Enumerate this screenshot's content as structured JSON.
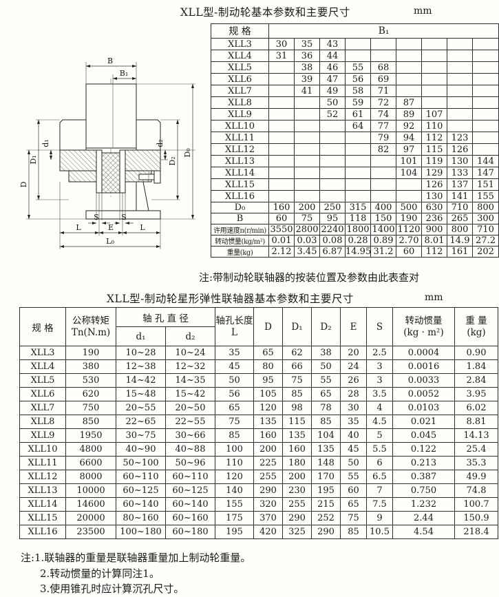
{
  "table1": {
    "title": "XLL型-制动轮基本参数和主要尺寸",
    "unit": "mm",
    "col_spec": "规 格",
    "col_b1": "B₁",
    "rows": [
      [
        "XLL3",
        "30",
        "35",
        "43",
        "",
        "",
        "",
        "",
        "",
        ""
      ],
      [
        "XLL4",
        "31",
        "36",
        "44",
        "",
        "",
        "",
        "",
        "",
        ""
      ],
      [
        "XLL5",
        "",
        "38",
        "46",
        "55",
        "68",
        "",
        "",
        "",
        ""
      ],
      [
        "XLL6",
        "",
        "39",
        "47",
        "56",
        "69",
        "",
        "",
        "",
        ""
      ],
      [
        "XLL7",
        "",
        "41",
        "49",
        "58",
        "71",
        "",
        "",
        "",
        ""
      ],
      [
        "XLL8",
        "",
        "",
        "50",
        "59",
        "72",
        "87",
        "",
        "",
        ""
      ],
      [
        "XLL9",
        "",
        "",
        "52",
        "61",
        "74",
        "89",
        "107",
        "",
        ""
      ],
      [
        "XLL10",
        "",
        "",
        "",
        "64",
        "77",
        "92",
        "110",
        "",
        ""
      ],
      [
        "XLL11",
        "",
        "",
        "",
        "",
        "79",
        "94",
        "112",
        "123",
        ""
      ],
      [
        "XLL12",
        "",
        "",
        "",
        "",
        "82",
        "97",
        "115",
        "126",
        ""
      ],
      [
        "XLL13",
        "",
        "",
        "",
        "",
        "",
        "101",
        "119",
        "130",
        "144"
      ],
      [
        "XLL14",
        "",
        "",
        "",
        "",
        "",
        "104",
        "129",
        "133",
        "147"
      ],
      [
        "XLL15",
        "",
        "",
        "",
        "",
        "",
        "",
        "126",
        "137",
        "151"
      ],
      [
        "XLL16",
        "",
        "",
        "",
        "",
        "",
        "",
        "130",
        "141",
        "155"
      ]
    ],
    "param_rows": [
      [
        "D₀",
        "160",
        "200",
        "250",
        "315",
        "400",
        "500",
        "630",
        "710",
        "800"
      ],
      [
        "B",
        "60",
        "75",
        "95",
        "118",
        "150",
        "190",
        "236",
        "265",
        "300"
      ],
      [
        "许用速度n(r/min)",
        "3550",
        "2800",
        "2240",
        "1800",
        "1400",
        "1120",
        "900",
        "800",
        "710"
      ],
      [
        "转动惯量(kg/m²)",
        "0.01",
        "0.03",
        "0.08",
        "0.28",
        "0.89",
        "2.70",
        "8.01",
        "14.9",
        "27.2"
      ],
      [
        "重量(kg)",
        "2.12",
        "3.45",
        "6.87",
        "14.95",
        "31.2",
        "60",
        "112",
        "161",
        "202"
      ]
    ],
    "note": "注:带制动轮联轴器的按装位置及参数由此表查对"
  },
  "table2": {
    "title": "XLL型-制动轮星形弹性联轴器基本参数和主要尺寸",
    "unit": "mm",
    "headers": {
      "spec": "规  格",
      "torque_l1": "公称转矩",
      "torque_l2": "Tn(N.m)",
      "bore_dia": "轴 孔 直 径",
      "d1": "d₁",
      "d2": "d₂",
      "bore_len_l1": "轴孔长度",
      "bore_len_l2": "L",
      "D": "D",
      "D1": "D₁",
      "D2": "D₂",
      "E": "E",
      "S": "S",
      "inertia_l1": "转动惯量",
      "inertia_l2": "(kg · m²)",
      "weight_l1": "重 量",
      "weight_l2": "(kg)"
    },
    "rows": [
      [
        "XLL3",
        "190",
        "10~28",
        "10~24",
        "35",
        "65",
        "62",
        "38",
        "20",
        "2.5",
        "0.0004",
        "0.90"
      ],
      [
        "XLL4",
        "380",
        "12~38",
        "12~32",
        "45",
        "80",
        "66",
        "50",
        "24",
        "3",
        "0.0016",
        "1.84"
      ],
      [
        "XLL5",
        "530",
        "14~42",
        "14~35",
        "50",
        "95",
        "75",
        "55",
        "26",
        "3",
        "0.0033",
        "2.84"
      ],
      [
        "XLL6",
        "620",
        "15~48",
        "15~42",
        "56",
        "105",
        "85",
        "65",
        "28",
        "3.5",
        "0.0052",
        "3.95"
      ],
      [
        "XLL7",
        "750",
        "20~55",
        "20~50",
        "65",
        "120",
        "98",
        "78",
        "30",
        "4",
        "0.0103",
        "6.02"
      ],
      [
        "XLL8",
        "850",
        "22~65",
        "22~55",
        "75",
        "135",
        "115",
        "85",
        "35",
        "4.5",
        "0.021",
        "8.81"
      ],
      [
        "XLL9",
        "1950",
        "30~75",
        "30~66",
        "85",
        "160",
        "135",
        "104",
        "40",
        "5",
        "0.045",
        "14.13"
      ],
      [
        "XLL10",
        "4800",
        "40~90",
        "40~88",
        "100",
        "200",
        "160",
        "135",
        "45",
        "5.5",
        "0.122",
        "25.4"
      ],
      [
        "XLL11",
        "6600",
        "50~100",
        "50~96",
        "110",
        "225",
        "180",
        "148",
        "50",
        "6",
        "0.213",
        "35.3"
      ],
      [
        "XLL12",
        "8000",
        "60~110",
        "60~110",
        "120",
        "255",
        "200",
        "170",
        "55",
        "6.5",
        "0.387",
        "49.9"
      ],
      [
        "XLL13",
        "10000",
        "60~125",
        "60~125",
        "140",
        "290",
        "230",
        "195",
        "60",
        "7",
        "0.750",
        "74.8"
      ],
      [
        "XLL14",
        "14600",
        "60~140",
        "60~140",
        "155",
        "320",
        "255",
        "215",
        "65",
        "7.5",
        "1.232",
        "100.7"
      ],
      [
        "XLL15",
        "20000",
        "80~160",
        "60~160",
        "175",
        "370",
        "290",
        "252",
        "75",
        "9",
        "2.44",
        "150.9"
      ],
      [
        "XLL16",
        "23500",
        "100~180",
        "60~180",
        "195",
        "420",
        "325",
        "290",
        "85",
        "10.5",
        "4.54",
        "218.4"
      ]
    ]
  },
  "footnotes": {
    "n1": "注:1.联轴器的重量是联轴器重量加上制动轮重量。",
    "n2": "2.转动惯量的计算同注1。",
    "n3": "3.使用锥孔时应计算沉孔尺寸。"
  },
  "drawing": {
    "labels": {
      "B": "B",
      "B1": "B₁",
      "D": "D",
      "D1": "D₁",
      "d1": "d₁",
      "d2": "d₂",
      "D2": "D₂",
      "D0": "D₀",
      "S1": "S",
      "S2": "S",
      "L1": "L",
      "E": "E",
      "L2": "L",
      "L0": "L₀"
    }
  }
}
